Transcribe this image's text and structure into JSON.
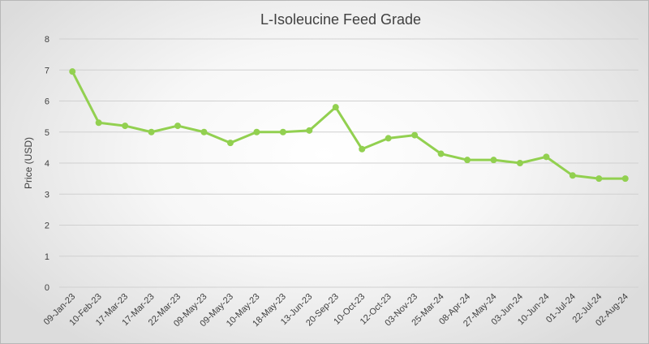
{
  "chart_data": {
    "type": "line",
    "title": "L-Isoleucine Feed Grade",
    "xlabel": "",
    "ylabel": "Price (USD)",
    "ylim": [
      0,
      8
    ],
    "yticks": [
      0,
      1,
      2,
      3,
      4,
      5,
      6,
      7,
      8
    ],
    "grid": true,
    "legend": "none",
    "categories": [
      "09-Jan-23",
      "10-Feb-23",
      "17-Mar-23",
      "17-Mar-23",
      "22-Mar-23",
      "09-May-23",
      "09-May-23",
      "10-May-23",
      "18-May-23",
      "13-Jun-23",
      "20-Sep-23",
      "10-Oct-23",
      "12-Oct-23",
      "03-Nov-23",
      "25-Mar-24",
      "08-Apr-24",
      "27-May-24",
      "03-Jun-24",
      "10-Jun-24",
      "01-Jul-24",
      "22-Jul-24",
      "02-Aug-24"
    ],
    "series": [
      {
        "name": "L-Isoleucine Feed Grade",
        "color": "#92d050",
        "values": [
          6.95,
          5.3,
          5.2,
          5.0,
          5.2,
          5.0,
          4.65,
          5.0,
          5.0,
          5.05,
          5.8,
          4.45,
          4.8,
          4.9,
          4.3,
          4.1,
          4.1,
          4.0,
          4.2,
          3.6,
          3.5,
          3.5
        ]
      }
    ]
  }
}
